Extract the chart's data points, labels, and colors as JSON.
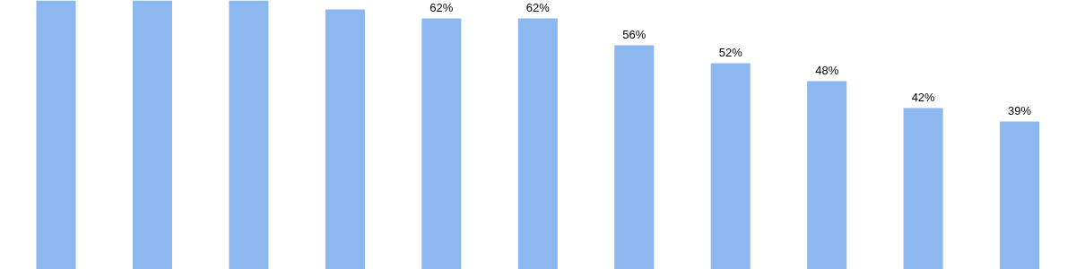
{
  "chart_data": {
    "type": "bar",
    "categories": [
      null,
      null,
      null,
      null,
      null,
      null,
      null,
      null,
      null,
      null,
      null
    ],
    "values": [
      66,
      66,
      66,
      64,
      62,
      62,
      56,
      52,
      48,
      42,
      39
    ],
    "value_labels": [
      null,
      null,
      null,
      null,
      "62%",
      "62%",
      "56%",
      "52%",
      "48%",
      "42%",
      "39%"
    ],
    "color": "#8db8ef",
    "ylim": [
      6,
      66
    ]
  }
}
